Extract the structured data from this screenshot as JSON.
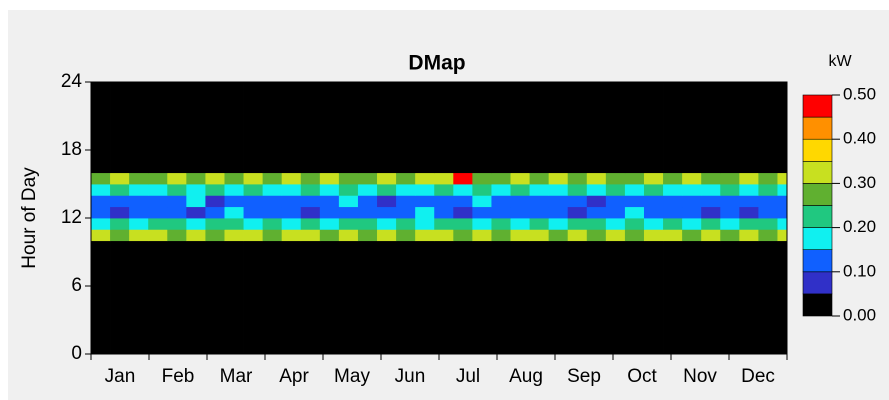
{
  "chart_data": {
    "type": "heatmap",
    "title": "DMap",
    "ylabel": "Hour of Day",
    "colorbar_label": "kW",
    "categories": [
      "Jan",
      "Feb",
      "Mar",
      "Apr",
      "May",
      "Jun",
      "Jul",
      "Aug",
      "Sep",
      "Oct",
      "Nov",
      "Dec"
    ],
    "xlim": [
      0,
      365
    ],
    "x_bins": [
      0,
      10,
      20,
      30,
      40,
      50,
      60,
      70,
      80,
      90,
      100,
      110,
      120,
      130,
      140,
      150,
      160,
      170,
      180,
      190,
      200,
      210,
      220,
      230,
      240,
      250,
      260,
      270,
      280,
      290,
      300,
      310,
      320,
      330,
      340,
      350,
      360,
      365
    ],
    "ylim": [
      0,
      24
    ],
    "yticks": [
      0,
      6,
      12,
      18,
      24
    ],
    "y_bins": [
      0,
      10,
      11,
      12,
      13,
      14,
      15,
      16,
      24
    ],
    "values": [
      [
        0,
        0,
        0,
        0,
        0,
        0,
        0,
        0,
        0,
        0,
        0,
        0,
        0,
        0,
        0,
        0,
        0,
        0,
        0,
        0,
        0,
        0,
        0,
        0,
        0,
        0,
        0,
        0,
        0,
        0,
        0,
        0,
        0,
        0,
        0,
        0,
        0
      ],
      [
        0.31,
        0.28,
        0.33,
        0.3,
        0.27,
        0.32,
        0.29,
        0.34,
        0.31,
        0.26,
        0.3,
        0.33,
        0.28,
        0.31,
        0.29,
        0.32,
        0.27,
        0.3,
        0.34,
        0.29,
        0.31,
        0.28,
        0.33,
        0.3,
        0.26,
        0.32,
        0.29,
        0.31,
        0.27,
        0.33,
        0.3,
        0.28,
        0.32,
        0.29,
        0.31,
        0.27,
        0.3
      ],
      [
        0.19,
        0.22,
        0.17,
        0.21,
        0.24,
        0.18,
        0.2,
        0.23,
        0.16,
        0.21,
        0.19,
        0.22,
        0.18,
        0.24,
        0.2,
        0.17,
        0.22,
        0.19,
        0.21,
        0.23,
        0.18,
        0.2,
        0.16,
        0.22,
        0.19,
        0.21,
        0.24,
        0.18,
        0.2,
        0.17,
        0.22,
        0.19,
        0.23,
        0.18,
        0.21,
        0.2,
        0.19
      ],
      [
        0.12,
        0.09,
        0.14,
        0.11,
        0.13,
        0.08,
        0.12,
        0.15,
        0.1,
        0.13,
        0.11,
        0.09,
        0.14,
        0.12,
        0.1,
        0.13,
        0.11,
        0.16,
        0.12,
        0.09,
        0.13,
        0.11,
        0.14,
        0.1,
        0.12,
        0.08,
        0.13,
        0.11,
        0.15,
        0.12,
        0.1,
        0.13,
        0.09,
        0.12,
        0.07,
        0.11,
        0.13
      ],
      [
        0.11,
        0.14,
        0.1,
        0.13,
        0.12,
        0.15,
        0.09,
        0.12,
        0.14,
        0.11,
        0.13,
        0.1,
        0.12,
        0.15,
        0.11,
        0.09,
        0.13,
        0.12,
        0.14,
        0.11,
        0.16,
        0.1,
        0.12,
        0.13,
        0.11,
        0.14,
        0.09,
        0.12,
        0.13,
        0.1,
        0.12,
        0.14,
        0.11,
        0.13,
        0.1,
        0.12,
        0.11
      ],
      [
        0.18,
        0.21,
        0.16,
        0.19,
        0.22,
        0.17,
        0.2,
        0.18,
        0.23,
        0.16,
        0.19,
        0.21,
        0.17,
        0.2,
        0.18,
        0.22,
        0.16,
        0.19,
        0.24,
        0.17,
        0.21,
        0.18,
        0.2,
        0.16,
        0.19,
        0.22,
        0.17,
        0.2,
        0.18,
        0.21,
        0.16,
        0.19,
        0.17,
        0.2,
        0.18,
        0.21,
        0.19
      ],
      [
        0.28,
        0.31,
        0.26,
        0.29,
        0.33,
        0.27,
        0.3,
        0.25,
        0.32,
        0.28,
        0.3,
        0.27,
        0.31,
        0.29,
        0.26,
        0.33,
        0.28,
        0.3,
        0.34,
        0.47,
        0.29,
        0.27,
        0.31,
        0.28,
        0.3,
        0.26,
        0.32,
        0.29,
        0.27,
        0.31,
        0.28,
        0.3,
        0.26,
        0.29,
        0.32,
        0.28,
        0.3
      ],
      [
        0,
        0,
        0,
        0,
        0,
        0,
        0,
        0,
        0,
        0,
        0,
        0,
        0,
        0,
        0,
        0,
        0,
        0,
        0,
        0,
        0,
        0,
        0,
        0,
        0,
        0,
        0,
        0,
        0,
        0,
        0,
        0,
        0,
        0,
        0,
        0,
        0
      ]
    ],
    "color_levels": [
      0,
      0.05,
      0.1,
      0.15,
      0.2,
      0.25,
      0.3,
      0.35,
      0.4,
      0.45,
      0.5
    ],
    "colors": [
      "#000000",
      "#3030c8",
      "#1060ff",
      "#10f0f0",
      "#20c880",
      "#60b030",
      "#c8e020",
      "#ffd800",
      "#ff9000",
      "#ff0000"
    ],
    "colorbar_ticks": [
      {
        "value": 0,
        "label": "0.00"
      },
      {
        "value": 0.1,
        "label": "0.10"
      },
      {
        "value": 0.2,
        "label": "0.20"
      },
      {
        "value": 0.3,
        "label": "0.30"
      },
      {
        "value": 0.4,
        "label": "0.40"
      },
      {
        "value": 0.5,
        "label": "0.50"
      }
    ]
  }
}
